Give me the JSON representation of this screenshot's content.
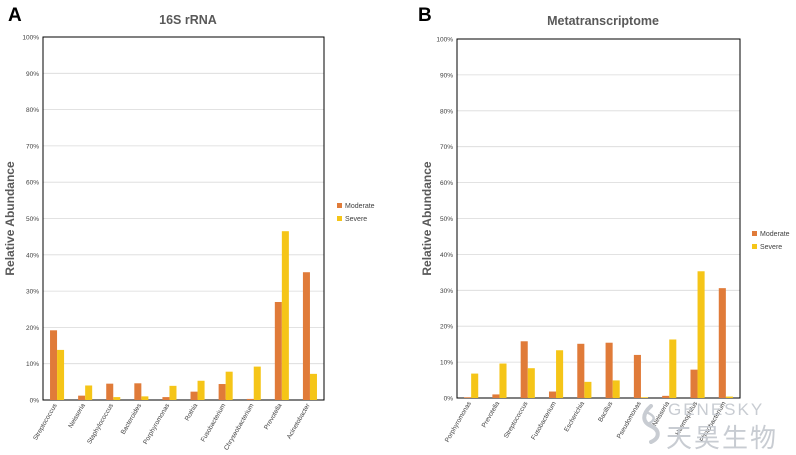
{
  "colors": {
    "moderate": "#E07B39",
    "severe": "#F5C518",
    "axis": "#000000",
    "grid": "#d9d9d9",
    "text": "#404040"
  },
  "watermark": {
    "brand_en": "GENESKY",
    "brand_cn": "天昊生物"
  },
  "chart_data": [
    {
      "panel_label": "A",
      "type": "bar",
      "title": "16S rRNA",
      "xlabel": "",
      "ylabel": "Relative  Abundance",
      "ylim": [
        0,
        100
      ],
      "ytick_labels": [
        "0%",
        "10%",
        "20%",
        "30%",
        "40%",
        "50%",
        "60%",
        "70%",
        "80%",
        "90%",
        "100%"
      ],
      "grid": true,
      "legend_position": "right",
      "categories": [
        "Streptococcus",
        "Neisseria",
        "Staphylococcus",
        "Bacteroides",
        "Porphyromonas",
        "Rothia",
        "Fusobacterium",
        "Chryseobacterium",
        "Prevotella",
        "Acinetobacter"
      ],
      "series": [
        {
          "name": "Moderate",
          "color_key": "moderate",
          "values": [
            19.2,
            1.2,
            4.5,
            4.6,
            0.8,
            2.3,
            4.4,
            0.3,
            27.0,
            35.2
          ]
        },
        {
          "name": "Severe",
          "color_key": "severe",
          "values": [
            13.8,
            4.0,
            0.8,
            1.0,
            3.9,
            5.3,
            7.8,
            9.2,
            46.5,
            7.2
          ]
        }
      ]
    },
    {
      "panel_label": "B",
      "type": "bar",
      "title": "Metatranscriptome",
      "xlabel": "",
      "ylabel": "Relative  Abundance",
      "ylim": [
        0,
        100
      ],
      "ytick_labels": [
        "0%",
        "10%",
        "20%",
        "30%",
        "40%",
        "50%",
        "60%",
        "70%",
        "80%",
        "90%",
        "100%"
      ],
      "grid": true,
      "legend_position": "right",
      "categories": [
        "Porphyromonas",
        "Prevotella",
        "Streptococcus",
        "Fusobacterium",
        "Escherichia",
        "Bacillus",
        "Pseudomonas",
        "Neisseria",
        "Haemophilus",
        "Photobacterium"
      ],
      "series": [
        {
          "name": "Moderate",
          "color_key": "moderate",
          "values": [
            0.2,
            1.0,
            15.8,
            1.8,
            15.1,
            15.4,
            12.0,
            0.6,
            7.9,
            30.6
          ]
        },
        {
          "name": "Severe",
          "color_key": "severe",
          "values": [
            6.8,
            9.6,
            8.3,
            13.3,
            4.5,
            4.9,
            0.2,
            16.3,
            35.3,
            0.4
          ]
        }
      ]
    }
  ]
}
